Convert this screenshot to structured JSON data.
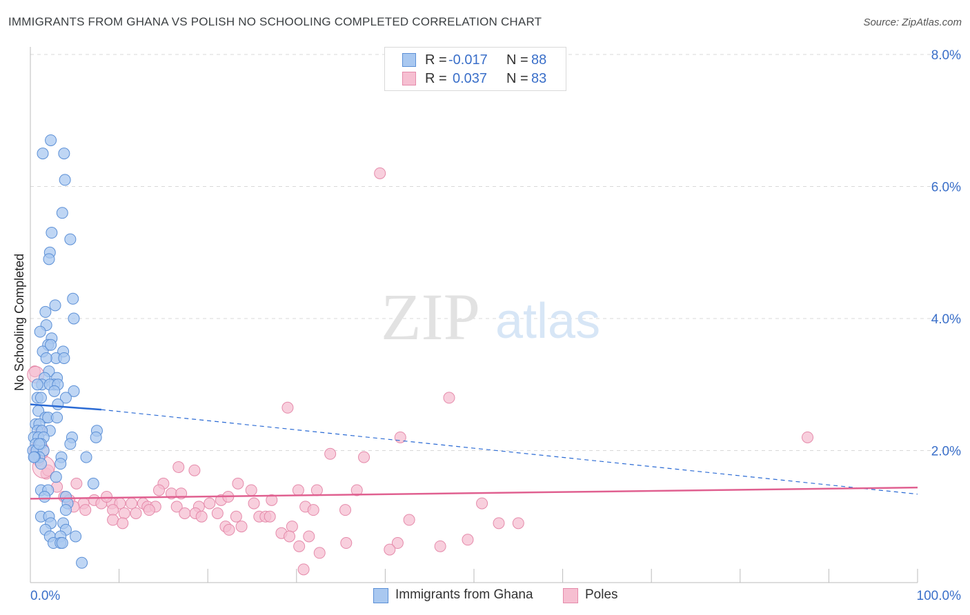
{
  "title": "IMMIGRANTS FROM GHANA VS POLISH NO SCHOOLING COMPLETED CORRELATION CHART",
  "source": "Source: ZipAtlas.com",
  "watermark": {
    "zip": "ZIP",
    "atlas": "atlas"
  },
  "legend": {
    "r_label": "R =",
    "n_label": "N =",
    "series1": {
      "r": "-0.017",
      "n": "88"
    },
    "series2": {
      "r": "0.037",
      "n": "83"
    }
  },
  "colors": {
    "blue_fill": "#a9c8f0",
    "blue_stroke": "#5b8fd6",
    "blue_line": "#2a6ad4",
    "pink_fill": "#f6bfd1",
    "pink_stroke": "#e58aaa",
    "pink_line": "#e06090",
    "grid": "#d8d8d8",
    "axis_text": "#3a6fc9"
  },
  "chart_data": {
    "type": "scatter",
    "title": "IMMIGRANTS FROM GHANA VS POLISH NO SCHOOLING COMPLETED CORRELATION CHART",
    "xlabel": "",
    "ylabel": "No Schooling Completed",
    "xlim": [
      0,
      100
    ],
    "ylim": [
      0,
      8
    ],
    "x_tick_labels": [
      "0.0%",
      "100.0%"
    ],
    "y_ticks": [
      2,
      4,
      6,
      8
    ],
    "y_tick_labels": [
      "2.0%",
      "4.0%",
      "6.0%",
      "8.0%"
    ],
    "series": [
      {
        "name": "Immigrants from Ghana",
        "r": -0.017,
        "n": 88,
        "trend": {
          "solid": [
            [
              0,
              2.7
            ],
            [
              8,
              2.62
            ]
          ],
          "dashed": [
            [
              8,
              2.62
            ],
            [
              100,
              1.34
            ]
          ]
        },
        "points": [
          [
            2.3,
            6.7
          ],
          [
            1.4,
            6.5
          ],
          [
            3.8,
            6.5
          ],
          [
            3.9,
            6.1
          ],
          [
            3.6,
            5.6
          ],
          [
            2.4,
            5.3
          ],
          [
            4.5,
            5.2
          ],
          [
            2.2,
            5.0
          ],
          [
            2.1,
            4.9
          ],
          [
            2.8,
            4.2
          ],
          [
            4.8,
            4.3
          ],
          [
            1.7,
            4.1
          ],
          [
            4.9,
            4.0
          ],
          [
            1.8,
            3.9
          ],
          [
            1.1,
            3.8
          ],
          [
            2.4,
            3.7
          ],
          [
            2.0,
            3.6
          ],
          [
            1.4,
            3.5
          ],
          [
            2.3,
            3.6
          ],
          [
            3.7,
            3.5
          ],
          [
            2.9,
            3.4
          ],
          [
            1.8,
            3.4
          ],
          [
            3.8,
            3.4
          ],
          [
            2.1,
            3.2
          ],
          [
            1.6,
            3.1
          ],
          [
            3.0,
            3.1
          ],
          [
            1.3,
            3.0
          ],
          [
            0.8,
            3.0
          ],
          [
            2.7,
            3.0
          ],
          [
            2.2,
            3.0
          ],
          [
            3.1,
            3.0
          ],
          [
            4.9,
            2.9
          ],
          [
            0.8,
            2.8
          ],
          [
            1.2,
            2.8
          ],
          [
            2.7,
            2.9
          ],
          [
            4.0,
            2.8
          ],
          [
            3.1,
            2.7
          ],
          [
            0.9,
            2.6
          ],
          [
            1.7,
            2.5
          ],
          [
            2.0,
            2.5
          ],
          [
            3.0,
            2.5
          ],
          [
            0.6,
            2.4
          ],
          [
            1.0,
            2.4
          ],
          [
            2.2,
            2.3
          ],
          [
            0.8,
            2.3
          ],
          [
            7.5,
            2.3
          ],
          [
            1.3,
            2.3
          ],
          [
            0.4,
            2.2
          ],
          [
            0.9,
            2.2
          ],
          [
            1.5,
            2.2
          ],
          [
            4.7,
            2.2
          ],
          [
            7.4,
            2.2
          ],
          [
            0.6,
            2.1
          ],
          [
            1.2,
            2.1
          ],
          [
            4.5,
            2.1
          ],
          [
            0.3,
            2.0
          ],
          [
            0.7,
            2.0
          ],
          [
            1.5,
            2.0
          ],
          [
            0.5,
            1.9
          ],
          [
            1.0,
            1.9
          ],
          [
            3.5,
            1.9
          ],
          [
            6.3,
            1.9
          ],
          [
            0.5,
            1.9
          ],
          [
            1.2,
            1.8
          ],
          [
            3.4,
            1.8
          ],
          [
            2.9,
            1.6
          ],
          [
            7.1,
            1.5
          ],
          [
            1.2,
            1.4
          ],
          [
            2.0,
            1.4
          ],
          [
            1.6,
            1.3
          ],
          [
            4.0,
            1.3
          ],
          [
            4.2,
            1.2
          ],
          [
            4.0,
            1.1
          ],
          [
            1.2,
            1.0
          ],
          [
            2.1,
            1.0
          ],
          [
            3.7,
            0.9
          ],
          [
            2.3,
            0.9
          ],
          [
            4.0,
            0.8
          ],
          [
            1.7,
            0.8
          ],
          [
            2.2,
            0.7
          ],
          [
            3.4,
            0.7
          ],
          [
            5.1,
            0.7
          ],
          [
            2.6,
            0.6
          ],
          [
            3.4,
            0.6
          ],
          [
            3.6,
            0.6
          ],
          [
            5.8,
            0.3
          ],
          [
            1.0,
            2.1
          ],
          [
            0.4,
            1.9
          ]
        ]
      },
      {
        "name": "Poles",
        "r": 0.037,
        "n": 83,
        "trend": {
          "solid": [
            [
              0,
              1.27
            ],
            [
              100,
              1.44
            ]
          ]
        },
        "points": [
          [
            39.4,
            6.2
          ],
          [
            47.2,
            2.8
          ],
          [
            29.0,
            2.65
          ],
          [
            41.7,
            2.2
          ],
          [
            87.6,
            2.2
          ],
          [
            33.8,
            1.95
          ],
          [
            37.6,
            1.9
          ],
          [
            16.7,
            1.75
          ],
          [
            18.5,
            1.7
          ],
          [
            1.8,
            1.65
          ],
          [
            0.9,
            1.85
          ],
          [
            15.0,
            1.5
          ],
          [
            23.4,
            1.5
          ],
          [
            5.2,
            1.5
          ],
          [
            14.5,
            1.4
          ],
          [
            24.9,
            1.4
          ],
          [
            30.2,
            1.4
          ],
          [
            32.3,
            1.4
          ],
          [
            36.8,
            1.4
          ],
          [
            15.9,
            1.35
          ],
          [
            17.0,
            1.35
          ],
          [
            21.5,
            1.25
          ],
          [
            22.3,
            1.3
          ],
          [
            25.2,
            1.2
          ],
          [
            27.2,
            1.25
          ],
          [
            12.7,
            1.2
          ],
          [
            6.0,
            1.2
          ],
          [
            7.2,
            1.25
          ],
          [
            8.0,
            1.2
          ],
          [
            9.2,
            1.2
          ],
          [
            10.1,
            1.2
          ],
          [
            11.4,
            1.2
          ],
          [
            13.2,
            1.15
          ],
          [
            14.1,
            1.15
          ],
          [
            16.5,
            1.15
          ],
          [
            19.0,
            1.15
          ],
          [
            20.2,
            1.2
          ],
          [
            31.0,
            1.15
          ],
          [
            31.9,
            1.1
          ],
          [
            35.5,
            1.1
          ],
          [
            50.9,
            1.2
          ],
          [
            3.8,
            1.3
          ],
          [
            4.4,
            1.25
          ],
          [
            4.9,
            1.15
          ],
          [
            6.2,
            1.1
          ],
          [
            9.3,
            1.1
          ],
          [
            10.6,
            1.05
          ],
          [
            11.9,
            1.05
          ],
          [
            13.4,
            1.1
          ],
          [
            17.4,
            1.05
          ],
          [
            18.6,
            1.05
          ],
          [
            19.3,
            1.0
          ],
          [
            23.2,
            1.0
          ],
          [
            25.8,
            1.0
          ],
          [
            26.5,
            1.0
          ],
          [
            27.0,
            1.0
          ],
          [
            21.1,
            1.05
          ],
          [
            9.3,
            0.95
          ],
          [
            10.4,
            0.9
          ],
          [
            22.0,
            0.85
          ],
          [
            23.8,
            0.85
          ],
          [
            29.5,
            0.85
          ],
          [
            42.7,
            0.95
          ],
          [
            55.0,
            0.9
          ],
          [
            52.8,
            0.9
          ],
          [
            22.4,
            0.8
          ],
          [
            28.3,
            0.75
          ],
          [
            29.2,
            0.7
          ],
          [
            31.4,
            0.7
          ],
          [
            35.6,
            0.6
          ],
          [
            49.3,
            0.65
          ],
          [
            41.4,
            0.6
          ],
          [
            46.2,
            0.55
          ],
          [
            30.3,
            0.55
          ],
          [
            40.5,
            0.5
          ],
          [
            32.6,
            0.45
          ],
          [
            30.8,
            0.2
          ],
          [
            0.5,
            3.2
          ],
          [
            1.2,
            2.3
          ],
          [
            0.6,
            1.95
          ],
          [
            2.0,
            1.7
          ],
          [
            3.0,
            1.45
          ],
          [
            8.6,
            1.3
          ]
        ]
      }
    ]
  },
  "bottom_legend": {
    "series1_label": "Immigrants from Ghana",
    "series2_label": "Poles"
  }
}
